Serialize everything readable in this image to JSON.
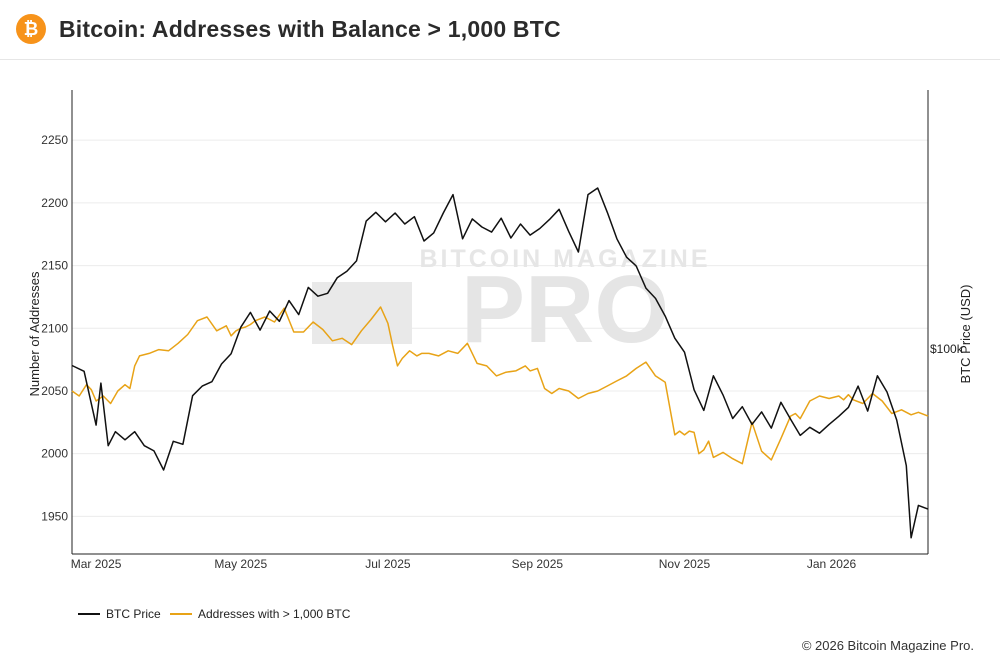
{
  "header": {
    "logo_icon": "bitcoin-logo-icon",
    "logo_glyph": "₿",
    "title": "Bitcoin: Addresses with Balance > 1,000 BTC"
  },
  "footer": {
    "copyright": "© 2026 Bitcoin Magazine Pro."
  },
  "watermark": {
    "top": "BITCOIN MAGAZINE",
    "main": "PRO"
  },
  "colors": {
    "btc_price": "#111111",
    "addresses": "#e8a317",
    "grid": "#ececec",
    "axis": "#222222"
  },
  "chart_data": {
    "type": "line",
    "title": "Bitcoin: Addresses with Balance > 1,000 BTC",
    "xlabel": "",
    "ylabel": "Number of Addresses",
    "y2label": "BTC Price (USD)",
    "y2_tick_labels": [
      {
        "label": "$100k",
        "value": 100000
      }
    ],
    "ylim": [
      1920,
      2290
    ],
    "y2lim": [
      72000,
      135000
    ],
    "yticks": [
      1950,
      2000,
      2050,
      2100,
      2150,
      2200,
      2250
    ],
    "xlim": [
      0,
      355
    ],
    "xticks": [
      {
        "label": "Mar 2025",
        "t": 10
      },
      {
        "label": "May 2025",
        "t": 70
      },
      {
        "label": "Jul 2025",
        "t": 131
      },
      {
        "label": "Sep 2025",
        "t": 193
      },
      {
        "label": "Nov 2025",
        "t": 254
      },
      {
        "label": "Jan 2026",
        "t": 315
      }
    ],
    "legend": [
      "BTC Price",
      "Addresses with > 1,000 BTC"
    ],
    "legend_position": "bottom-left",
    "series": [
      {
        "name": "BTC Price",
        "axis": "right",
        "t": [
          0,
          5,
          10,
          12,
          15,
          18,
          22,
          26,
          30,
          34,
          38,
          42,
          46,
          50,
          54,
          58,
          62,
          66,
          70,
          74,
          78,
          82,
          86,
          90,
          94,
          98,
          102,
          106,
          110,
          114,
          118,
          122,
          126,
          130,
          134,
          138,
          142,
          146,
          150,
          154,
          158,
          162,
          166,
          170,
          174,
          178,
          182,
          186,
          190,
          194,
          198,
          202,
          206,
          210,
          214,
          218,
          222,
          226,
          230,
          234,
          238,
          242,
          246,
          250,
          254,
          258,
          262,
          266,
          270,
          274,
          278,
          282,
          286,
          290,
          294,
          298,
          302,
          306,
          310,
          314,
          318,
          322,
          326,
          330,
          334,
          338,
          342,
          346,
          348,
          351,
          355
        ],
        "values": [
          97600,
          96800,
          89500,
          95200,
          86700,
          88600,
          87500,
          88600,
          86700,
          86000,
          83400,
          87300,
          86900,
          93500,
          94800,
          95400,
          97800,
          99200,
          102800,
          104800,
          102400,
          105000,
          103600,
          106400,
          104500,
          108200,
          107000,
          107400,
          109500,
          110400,
          111800,
          117200,
          118400,
          117100,
          118300,
          116800,
          117800,
          114500,
          115600,
          118300,
          120800,
          114800,
          117500,
          116400,
          115700,
          117600,
          114900,
          116800,
          115300,
          116200,
          117400,
          118800,
          115800,
          113000,
          120800,
          121700,
          118400,
          114800,
          112300,
          111100,
          108100,
          106700,
          104300,
          101300,
          99400,
          94300,
          91500,
          96200,
          93600,
          90400,
          92000,
          89600,
          91300,
          89100,
          92600,
          90300,
          88100,
          89200,
          88400,
          89600,
          90700,
          91900,
          94800,
          91400,
          96200,
          94000,
          90200,
          84000,
          74200,
          78600,
          78100
        ]
      },
      {
        "name": "Addresses with > 1,000 BTC",
        "axis": "left",
        "t": [
          0,
          3,
          6,
          8,
          10,
          13,
          16,
          19,
          22,
          24,
          26,
          28,
          32,
          36,
          40,
          44,
          48,
          52,
          56,
          60,
          64,
          66,
          68,
          70,
          72,
          74,
          76,
          80,
          84,
          88,
          92,
          96,
          100,
          104,
          108,
          112,
          116,
          120,
          124,
          128,
          131,
          133,
          135,
          137,
          140,
          143,
          145,
          148,
          152,
          156,
          160,
          164,
          168,
          172,
          176,
          180,
          184,
          188,
          190,
          193,
          196,
          199,
          202,
          206,
          210,
          214,
          218,
          222,
          226,
          230,
          234,
          238,
          242,
          246,
          250,
          252,
          254,
          256,
          258,
          260,
          262,
          264,
          266,
          270,
          274,
          278,
          282,
          286,
          290,
          294,
          298,
          300,
          302,
          304,
          306,
          310,
          314,
          318,
          320,
          322,
          324,
          328,
          332,
          336,
          340,
          344,
          348,
          351,
          355
        ],
        "values": [
          2050,
          2046,
          2055,
          2051,
          2042,
          2046,
          2040,
          2050,
          2055,
          2052,
          2070,
          2078,
          2080,
          2083,
          2082,
          2088,
          2095,
          2106,
          2109,
          2098,
          2102,
          2094,
          2098,
          2100,
          2101,
          2103,
          2106,
          2109,
          2105,
          2116,
          2097,
          2097,
          2105,
          2099,
          2090,
          2092,
          2087,
          2098,
          2107,
          2117,
          2104,
          2086,
          2070,
          2076,
          2082,
          2078,
          2080,
          2080,
          2078,
          2082,
          2080,
          2088,
          2072,
          2070,
          2062,
          2065,
          2066,
          2070,
          2066,
          2068,
          2052,
          2048,
          2052,
          2050,
          2044,
          2048,
          2050,
          2054,
          2058,
          2062,
          2068,
          2073,
          2062,
          2057,
          2015,
          2018,
          2015,
          2018,
          2017,
          2000,
          2003,
          2010,
          1997,
          2001,
          1996,
          1992,
          2025,
          2002,
          1995,
          2012,
          2030,
          2032,
          2028,
          2035,
          2042,
          2046,
          2044,
          2046,
          2043,
          2047,
          2043,
          2040,
          2048,
          2042,
          2032,
          2035,
          2031,
          2033,
          2030
        ]
      }
    ]
  }
}
